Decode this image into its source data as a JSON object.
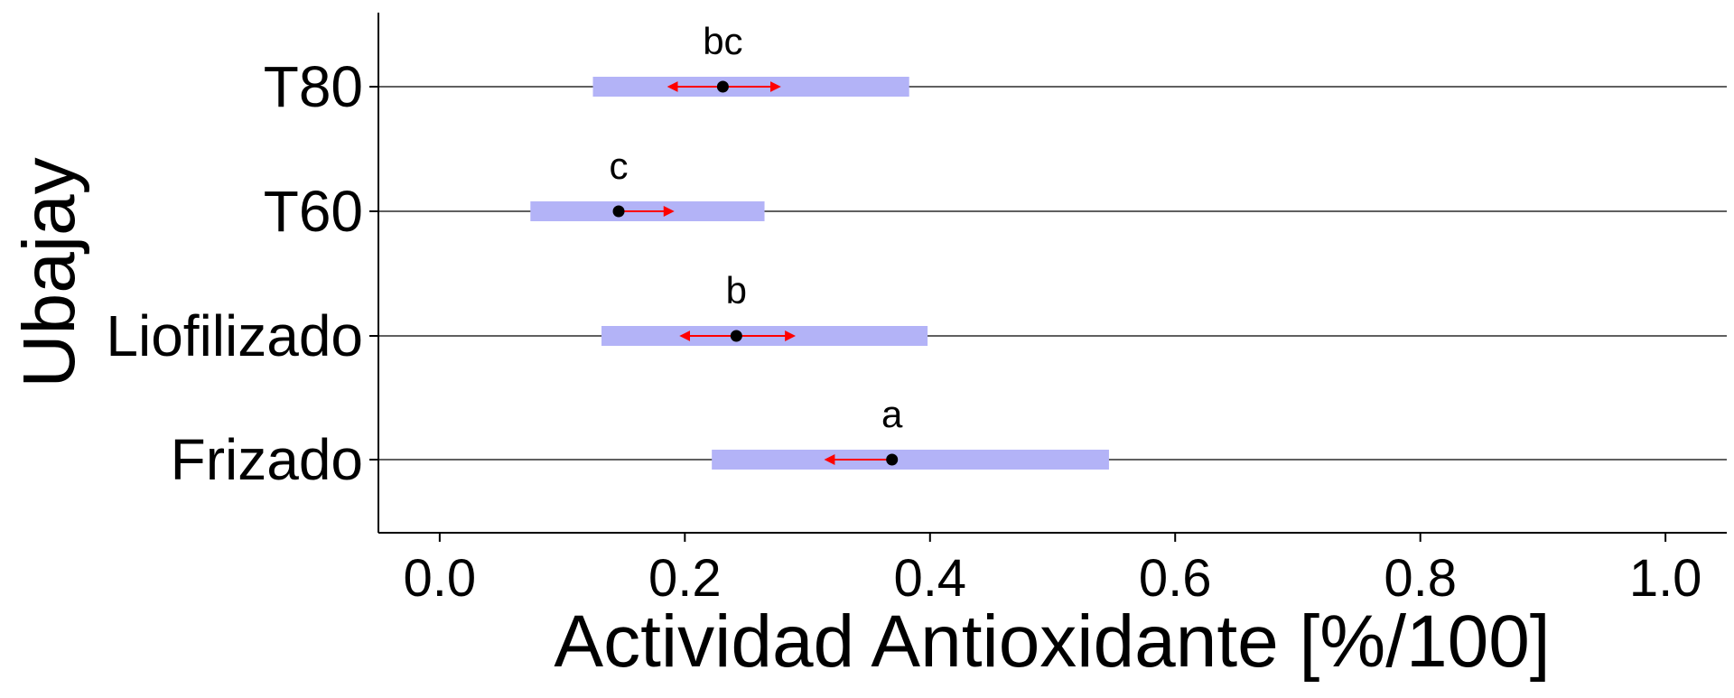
{
  "chart_data": {
    "type": "emmeans-interval",
    "xlabel": "Actividad Antioxidante [%/100]",
    "ylabel": "Ubajay",
    "xlim": [
      -0.05,
      1.05
    ],
    "xticks": [
      "0.0",
      "0.2",
      "0.4",
      "0.6",
      "0.8",
      "1.0"
    ],
    "xtick_values": [
      0.0,
      0.2,
      0.4,
      0.6,
      0.8,
      1.0
    ],
    "grid": "horizontal lines at categories",
    "categories": [
      "T80",
      "T60",
      "Liofilizado",
      "Frizado"
    ],
    "estimate": [
      0.231,
      0.146,
      0.242,
      0.369
    ],
    "ci_low": [
      0.125,
      0.074,
      0.132,
      0.222
    ],
    "ci_high": [
      0.383,
      0.265,
      0.398,
      0.546
    ],
    "cmp_low": [
      0.187,
      null,
      0.197,
      0.315
    ],
    "cmp_high": [
      0.277,
      0.19,
      0.289,
      null
    ],
    "letters": [
      "bc",
      "c",
      "b",
      "a"
    ],
    "colors": {
      "ci_band": "#b3b3f7",
      "comparison_arrow": "#ff0000",
      "point": "#000000",
      "line": "#000000"
    }
  }
}
